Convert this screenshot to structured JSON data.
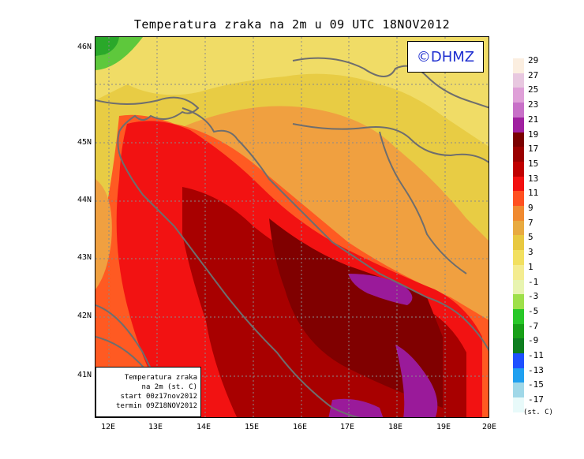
{
  "title": "Temperatura zraka na 2m u 09 UTC 18NOV2012",
  "logo_text": "©DHMZ",
  "info_box": {
    "line1": "Temperatura zraka",
    "line2": "na 2m (st. C)",
    "line3": "start 00z17nov2012",
    "line4": "termin 09Z18NOV2012"
  },
  "axes": {
    "lon_ticks": [
      "12E",
      "13E",
      "14E",
      "15E",
      "16E",
      "17E",
      "18E",
      "19E",
      "20E"
    ],
    "lat_ticks": [
      "46N",
      "45N",
      "44N",
      "43N",
      "42N",
      "41N"
    ]
  },
  "legend": {
    "unit": "(st. C)",
    "labels": [
      "29",
      "27",
      "25",
      "23",
      "21",
      "19",
      "17",
      "15",
      "13",
      "11",
      "9",
      "7",
      "5",
      "3",
      "1",
      "-1",
      "-3",
      "-5",
      "-7",
      "-9",
      "-11",
      "-13",
      "-15",
      "-17"
    ],
    "colors": [
      "#fbeee0",
      "#e8c8e0",
      "#dfa0d8",
      "#c870c8",
      "#a020a0",
      "#7a0000",
      "#9a0000",
      "#c00000",
      "#f21010",
      "#ff5020",
      "#f08a30",
      "#e8aa40",
      "#e8c840",
      "#f2e060",
      "#f4ec90",
      "#e8f4b0",
      "#9ee04a",
      "#28c828",
      "#18a018",
      "#0e7e20",
      "#1e50ff",
      "#20a0f0",
      "#a0d8e8",
      "#e8fafa"
    ]
  },
  "colors": {
    "border": "#6e6e6e",
    "grid": "#8a8a8a"
  }
}
